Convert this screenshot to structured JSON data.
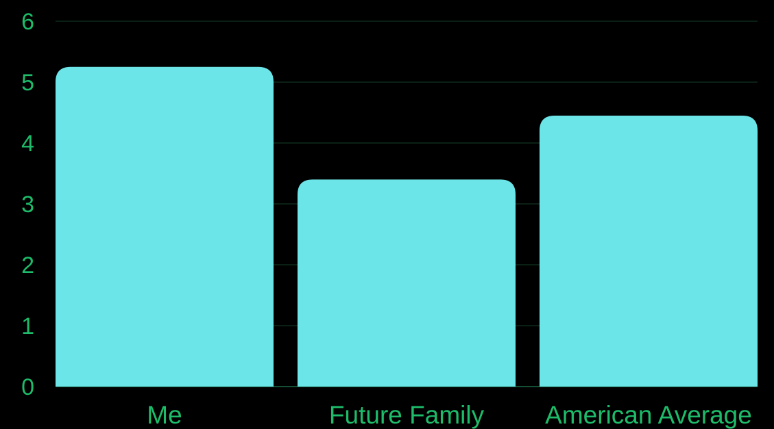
{
  "chart_data": {
    "type": "bar",
    "title": "",
    "xlabel": "",
    "ylabel": "",
    "categories": [
      "Me",
      "Future Family",
      "American Average"
    ],
    "values": [
      5.25,
      3.4,
      4.45
    ],
    "ylim": [
      0,
      6
    ],
    "yticks": [
      "0",
      "1",
      "2",
      "3",
      "4",
      "5",
      "6"
    ],
    "grid": true,
    "legend": "none"
  },
  "colors": {
    "background": "#000000",
    "bar": "#6ce5e8",
    "text": "#1dbb6a",
    "grid": "#123322",
    "axis": "#1a6b44"
  }
}
